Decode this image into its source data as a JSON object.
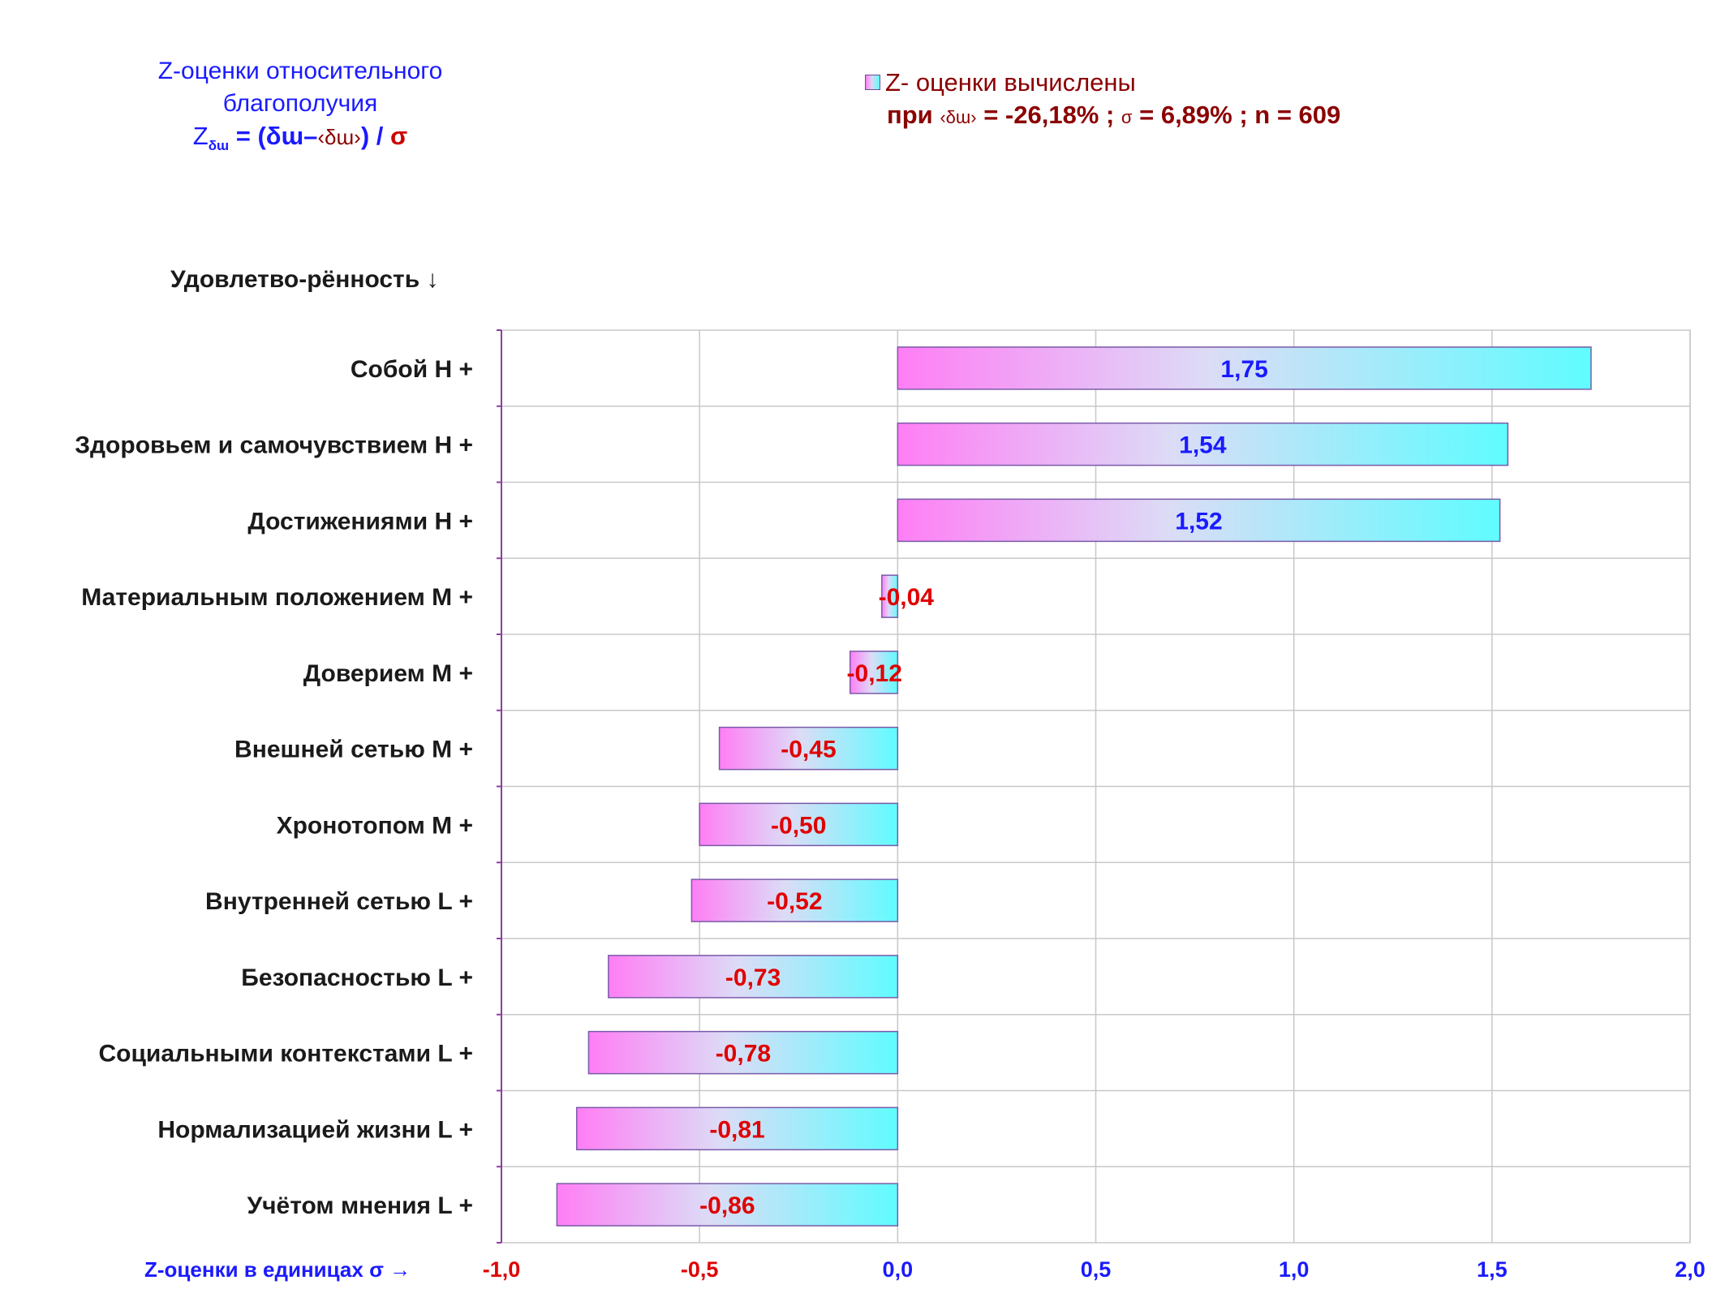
{
  "header": {
    "title_line1": "Z-оценки  относительного",
    "title_line2": "благополучия",
    "formula_z": "Z",
    "formula_sub": "δɯ",
    "formula_eq": " = (δɯ–",
    "formula_ang": "‹δɯ›",
    "formula_close": ") /",
    "formula_sigma": "σ"
  },
  "legend": {
    "line1": "Z- оценки вычислены",
    "line2_prefix": "при ",
    "line2_symbol": "‹δɯ›",
    "line2_rest": " = -26,18% ; ",
    "line2_sigma": "σ",
    "line2_tail": " = 6,89% ; n = 609"
  },
  "y_axis_caption": "Удовлетво-рённость ↓",
  "colors": {
    "bar_left": "#ff7ef5",
    "bar_mid": "#dcdcf6",
    "bar_right": "#5ffcff",
    "bar_border": "#7a5aa8",
    "grid": "#c8c8c8",
    "axis": "#8b3fa0",
    "positive_label": "#1a1aff",
    "negative_label": "#e00000",
    "category_text": "#1a1a1a"
  },
  "chart_data": {
    "type": "bar",
    "orientation": "horizontal",
    "categories": [
      "Собой  Н +",
      "Здоровьем и самочувствием  Н +",
      "Достижениями  Н +",
      "Материальным положением  М +",
      "Доверием  М +",
      "Внешней сетью  М +",
      "Хронотопом  М +",
      "Внутренней сетью  L +",
      "Безопасностью  L +",
      "Социальными контекстами  L +",
      "Нормализацией жизни  L +",
      "Учётом мнения  L +"
    ],
    "values": [
      1.75,
      1.54,
      1.52,
      -0.04,
      -0.12,
      -0.45,
      -0.5,
      -0.52,
      -0.73,
      -0.78,
      -0.81,
      -0.86
    ],
    "value_labels": [
      "1,75",
      "1,54",
      "1,52",
      "-0,04",
      "-0,12",
      "-0,45",
      "-0,50",
      "-0,52",
      "-0,73",
      "-0,78",
      "-0,81",
      "-0,86"
    ],
    "xlim": [
      -1.0,
      2.0
    ],
    "x_ticks": [
      -1.0,
      -0.5,
      0.0,
      0.5,
      1.0,
      1.5,
      2.0
    ],
    "x_tick_labels": [
      "-1,0",
      "-0,5",
      "0,0",
      "0,5",
      "1,0",
      "1,5",
      "2,0"
    ],
    "xlabel": "Z-оценки в единицах σ →",
    "grid": true
  }
}
